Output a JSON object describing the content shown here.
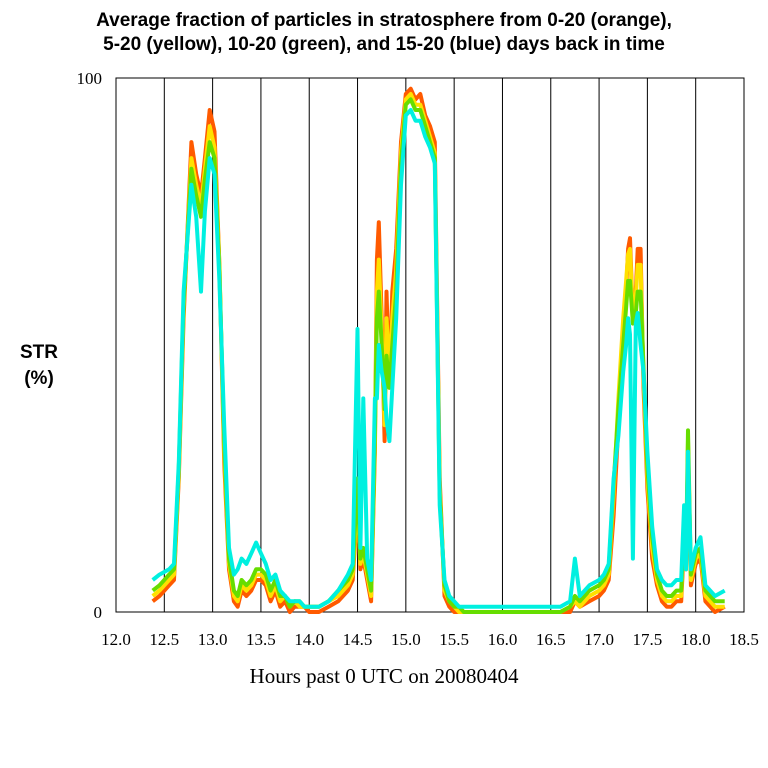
{
  "chart_data": {
    "type": "line",
    "title_lines": [
      "Average fraction of particles in stratosphere from 0-20 (orange),",
      "5-20 (yellow), 10-20 (green), and 15-20 (blue) days back in time"
    ],
    "ylabel_lines": [
      "STR",
      "(%)"
    ],
    "xlabel": "Hours past 0 UTC on 20080404",
    "xlim": [
      12.0,
      18.5
    ],
    "ylim": [
      0,
      100
    ],
    "x_ticks": [
      "12.0",
      "12.5",
      "13.0",
      "13.5",
      "14.0",
      "14.5",
      "15.0",
      "15.5",
      "16.0",
      "16.5",
      "17.0",
      "17.5",
      "18.0",
      "18.5"
    ],
    "y_ticks": [
      "0",
      "100"
    ],
    "grid": "vertical lines at every 0.5 hour",
    "series": [
      {
        "color": "#ff5a00",
        "x": [
          12.38,
          12.45,
          12.55,
          12.6,
          12.65,
          12.7,
          12.78,
          12.83,
          12.88,
          12.92,
          12.97,
          13.02,
          13.07,
          13.12,
          13.17,
          13.22,
          13.26,
          13.3,
          13.35,
          13.4,
          13.45,
          13.5,
          13.55,
          13.6,
          13.65,
          13.7,
          13.75,
          13.8,
          13.85,
          13.9,
          13.95,
          14.0,
          14.1,
          14.2,
          14.3,
          14.4,
          14.45,
          14.5,
          14.53,
          14.56,
          14.6,
          14.64,
          14.68,
          14.7,
          14.72,
          14.75,
          14.78,
          14.8,
          14.83,
          14.86,
          14.9,
          14.95,
          15.0,
          15.05,
          15.1,
          15.15,
          15.2,
          15.25,
          15.3,
          15.35,
          15.4,
          15.45,
          15.5,
          15.55,
          15.6,
          15.7,
          15.8,
          15.9,
          16.0,
          16.2,
          16.4,
          16.6,
          16.7,
          16.75,
          16.8,
          16.9,
          17.0,
          17.05,
          17.1,
          17.15,
          17.2,
          17.25,
          17.28,
          17.3,
          17.32,
          17.35,
          17.38,
          17.4,
          17.43,
          17.46,
          17.5,
          17.55,
          17.6,
          17.65,
          17.7,
          17.75,
          17.8,
          17.85,
          17.88,
          17.9,
          17.92,
          17.95,
          18.0,
          18.05,
          18.1,
          18.15,
          18.2,
          18.3
        ],
        "y": [
          2,
          3,
          5,
          6,
          25,
          55,
          88,
          82,
          78,
          85,
          94,
          90,
          65,
          28,
          8,
          2,
          1,
          4,
          3,
          4,
          6,
          6,
          5,
          2,
          4,
          1,
          2,
          0,
          1,
          1,
          1,
          0,
          0,
          1,
          2,
          4,
          6,
          20,
          8,
          10,
          6,
          2,
          30,
          66,
          73,
          55,
          32,
          60,
          42,
          60,
          68,
          88,
          97,
          98,
          96,
          97,
          93,
          91,
          88,
          25,
          3,
          1,
          0,
          0,
          0,
          0,
          0,
          0,
          0,
          0,
          0,
          0,
          0,
          2,
          1,
          2,
          3,
          4,
          6,
          18,
          35,
          52,
          60,
          68,
          70,
          55,
          60,
          68,
          68,
          42,
          23,
          10,
          5,
          2,
          1,
          1,
          2,
          2,
          13,
          8,
          30,
          5,
          9,
          10,
          2,
          1,
          0,
          1
        ]
      },
      {
        "color": "#ffe000",
        "x": [
          12.38,
          12.45,
          12.55,
          12.6,
          12.65,
          12.7,
          12.78,
          12.83,
          12.88,
          12.92,
          12.97,
          13.02,
          13.07,
          13.12,
          13.17,
          13.22,
          13.26,
          13.3,
          13.35,
          13.4,
          13.45,
          13.5,
          13.55,
          13.6,
          13.65,
          13.7,
          13.75,
          13.8,
          13.85,
          13.9,
          13.95,
          14.0,
          14.1,
          14.2,
          14.3,
          14.4,
          14.45,
          14.5,
          14.53,
          14.56,
          14.6,
          14.64,
          14.68,
          14.7,
          14.72,
          14.75,
          14.78,
          14.8,
          14.83,
          14.86,
          14.9,
          14.95,
          15.0,
          15.05,
          15.1,
          15.15,
          15.2,
          15.25,
          15.3,
          15.35,
          15.4,
          15.45,
          15.5,
          15.55,
          15.6,
          15.7,
          15.8,
          15.9,
          16.0,
          16.2,
          16.4,
          16.6,
          16.7,
          16.75,
          16.8,
          16.9,
          17.0,
          17.05,
          17.1,
          17.15,
          17.2,
          17.25,
          17.28,
          17.3,
          17.32,
          17.35,
          17.38,
          17.4,
          17.43,
          17.46,
          17.5,
          17.55,
          17.6,
          17.65,
          17.7,
          17.75,
          17.8,
          17.85,
          17.88,
          17.9,
          17.92,
          17.95,
          18.0,
          18.05,
          18.1,
          18.15,
          18.2,
          18.3
        ],
        "y": [
          3,
          4,
          6,
          7,
          26,
          57,
          85,
          80,
          76,
          83,
          91,
          87,
          65,
          30,
          9,
          3,
          2,
          5,
          4,
          5,
          7,
          7,
          6,
          3,
          5,
          2,
          3,
          1,
          2,
          1,
          1,
          1,
          1,
          2,
          3,
          5,
          7,
          22,
          9,
          11,
          7,
          3,
          32,
          60,
          66,
          52,
          35,
          55,
          45,
          55,
          64,
          86,
          96,
          97,
          95,
          95,
          92,
          89,
          86,
          23,
          4,
          2,
          1,
          0,
          0,
          0,
          0,
          0,
          0,
          0,
          0,
          0,
          1,
          2,
          1,
          3,
          4,
          5,
          7,
          22,
          40,
          55,
          62,
          67,
          68,
          55,
          59,
          65,
          65,
          44,
          25,
          12,
          6,
          3,
          2,
          2,
          3,
          3,
          15,
          9,
          32,
          6,
          10,
          11,
          3,
          2,
          1,
          1
        ]
      },
      {
        "color": "#66dd00",
        "x": [
          12.38,
          12.45,
          12.55,
          12.6,
          12.65,
          12.7,
          12.78,
          12.83,
          12.88,
          12.92,
          12.97,
          13.02,
          13.07,
          13.12,
          13.17,
          13.22,
          13.26,
          13.3,
          13.35,
          13.4,
          13.45,
          13.5,
          13.55,
          13.6,
          13.65,
          13.7,
          13.75,
          13.8,
          13.85,
          13.9,
          13.95,
          14.0,
          14.1,
          14.2,
          14.3,
          14.4,
          14.45,
          14.5,
          14.53,
          14.56,
          14.6,
          14.64,
          14.68,
          14.7,
          14.72,
          14.75,
          14.78,
          14.8,
          14.83,
          14.86,
          14.9,
          14.95,
          15.0,
          15.05,
          15.1,
          15.15,
          15.2,
          15.25,
          15.3,
          15.35,
          15.4,
          15.45,
          15.5,
          15.55,
          15.6,
          15.7,
          15.8,
          15.9,
          16.0,
          16.2,
          16.4,
          16.6,
          16.7,
          16.75,
          16.8,
          16.9,
          17.0,
          17.05,
          17.1,
          17.15,
          17.2,
          17.25,
          17.28,
          17.3,
          17.32,
          17.35,
          17.38,
          17.4,
          17.43,
          17.46,
          17.5,
          17.55,
          17.6,
          17.65,
          17.7,
          17.75,
          17.8,
          17.85,
          17.88,
          17.9,
          17.92,
          17.95,
          18.0,
          18.05,
          18.1,
          18.15,
          18.2,
          18.3
        ],
        "y": [
          4,
          5,
          7,
          8,
          27,
          58,
          83,
          78,
          74,
          81,
          88,
          85,
          64,
          32,
          10,
          4,
          3,
          6,
          5,
          6,
          8,
          8,
          7,
          4,
          6,
          3,
          3,
          1,
          2,
          2,
          1,
          1,
          1,
          2,
          4,
          6,
          8,
          25,
          10,
          12,
          8,
          4,
          34,
          55,
          60,
          50,
          38,
          48,
          42,
          50,
          60,
          84,
          95,
          96,
          94,
          94,
          91,
          88,
          85,
          22,
          5,
          2,
          1,
          1,
          0,
          0,
          0,
          0,
          0,
          0,
          0,
          0,
          1,
          3,
          2,
          4,
          5,
          6,
          8,
          24,
          38,
          50,
          57,
          62,
          62,
          54,
          56,
          60,
          60,
          46,
          27,
          14,
          7,
          4,
          3,
          3,
          4,
          4,
          17,
          10,
          34,
          7,
          11,
          12,
          4,
          3,
          2,
          2
        ]
      },
      {
        "color": "#00f0e0",
        "x": [
          12.38,
          12.45,
          12.55,
          12.6,
          12.65,
          12.7,
          12.78,
          12.83,
          12.88,
          12.92,
          12.97,
          13.02,
          13.07,
          13.12,
          13.17,
          13.22,
          13.26,
          13.3,
          13.35,
          13.4,
          13.45,
          13.5,
          13.55,
          13.6,
          13.65,
          13.7,
          13.75,
          13.8,
          13.85,
          13.9,
          13.95,
          14.0,
          14.1,
          14.2,
          14.3,
          14.4,
          14.45,
          14.5,
          14.53,
          14.56,
          14.6,
          14.64,
          14.68,
          14.7,
          14.72,
          14.75,
          14.78,
          14.8,
          14.83,
          14.86,
          14.9,
          14.95,
          15.0,
          15.05,
          15.1,
          15.15,
          15.2,
          15.25,
          15.3,
          15.35,
          15.4,
          15.45,
          15.5,
          15.55,
          15.6,
          15.7,
          15.8,
          15.9,
          16.0,
          16.2,
          16.4,
          16.6,
          16.7,
          16.75,
          16.8,
          16.9,
          17.0,
          17.05,
          17.1,
          17.15,
          17.2,
          17.25,
          17.28,
          17.3,
          17.32,
          17.35,
          17.38,
          17.4,
          17.43,
          17.46,
          17.5,
          17.55,
          17.6,
          17.65,
          17.7,
          17.75,
          17.8,
          17.85,
          17.88,
          17.9,
          17.92,
          17.95,
          18.0,
          18.05,
          18.1,
          18.15,
          18.2,
          18.3
        ],
        "y": [
          6,
          7,
          8,
          9,
          28,
          60,
          80,
          74,
          60,
          75,
          85,
          82,
          62,
          35,
          12,
          7,
          8,
          10,
          9,
          11,
          13,
          11,
          9,
          6,
          7,
          4,
          3,
          2,
          2,
          2,
          1,
          1,
          1,
          2,
          4,
          7,
          9,
          53,
          12,
          40,
          10,
          6,
          40,
          40,
          50,
          45,
          42,
          36,
          32,
          42,
          55,
          80,
          93,
          94,
          92,
          92,
          89,
          87,
          84,
          20,
          6,
          3,
          2,
          1,
          1,
          1,
          1,
          1,
          1,
          1,
          1,
          1,
          2,
          10,
          3,
          5,
          6,
          7,
          9,
          25,
          33,
          45,
          50,
          55,
          52,
          10,
          54,
          56,
          50,
          45,
          30,
          16,
          8,
          6,
          5,
          5,
          6,
          6,
          20,
          8,
          30,
          8,
          12,
          14,
          5,
          4,
          3,
          4
        ]
      }
    ]
  }
}
